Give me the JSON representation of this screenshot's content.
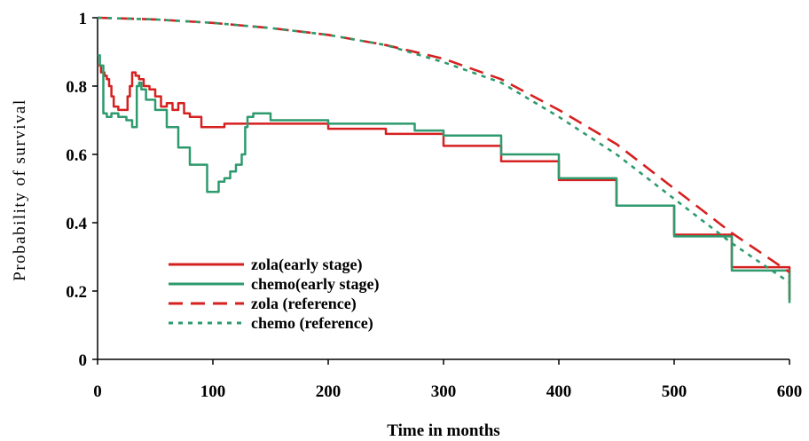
{
  "chart_data": {
    "type": "line",
    "title": "",
    "xlabel": "Time in months",
    "ylabel": "Probability of survival",
    "xlim": [
      0,
      600
    ],
    "ylim": [
      0,
      1
    ],
    "xticks": [
      0,
      100,
      200,
      300,
      400,
      500,
      600
    ],
    "yticks": [
      0,
      0.2,
      0.4,
      0.6,
      0.8,
      1
    ],
    "ytick_labels": [
      "0",
      "0.2",
      "0.4",
      "0.6",
      "0.8",
      "1"
    ],
    "grid": false,
    "legend_position": "lower-left",
    "series": [
      {
        "name": "zola(early stage)",
        "color": "#d62020",
        "style": "solid",
        "x": [
          0,
          3,
          6,
          8,
          10,
          12,
          14,
          18,
          22,
          26,
          28,
          30,
          33,
          36,
          40,
          45,
          50,
          55,
          60,
          65,
          70,
          75,
          80,
          85,
          90,
          95,
          100,
          110,
          120,
          150,
          200,
          250,
          300,
          350,
          400,
          450,
          500,
          550,
          600
        ],
        "y": [
          0.86,
          0.84,
          0.83,
          0.82,
          0.8,
          0.77,
          0.74,
          0.73,
          0.73,
          0.77,
          0.8,
          0.84,
          0.83,
          0.82,
          0.8,
          0.79,
          0.77,
          0.74,
          0.75,
          0.73,
          0.75,
          0.72,
          0.71,
          0.71,
          0.68,
          0.68,
          0.68,
          0.69,
          0.69,
          0.69,
          0.675,
          0.66,
          0.625,
          0.58,
          0.525,
          0.45,
          0.365,
          0.27,
          0.175
        ]
      },
      {
        "name": "chemo(early stage)",
        "color": "#2e9a6e",
        "style": "solid",
        "x": [
          0,
          2,
          5,
          8,
          12,
          18,
          25,
          30,
          34,
          36,
          38,
          42,
          50,
          60,
          70,
          80,
          90,
          95,
          100,
          105,
          110,
          115,
          120,
          125,
          128,
          130,
          135,
          140,
          150,
          200,
          270,
          275,
          300,
          350,
          400,
          450,
          500,
          550,
          600
        ],
        "y": [
          0.89,
          0.86,
          0.72,
          0.71,
          0.72,
          0.71,
          0.7,
          0.68,
          0.8,
          0.81,
          0.79,
          0.76,
          0.73,
          0.68,
          0.62,
          0.57,
          0.57,
          0.49,
          0.49,
          0.52,
          0.53,
          0.55,
          0.57,
          0.6,
          0.68,
          0.71,
          0.72,
          0.72,
          0.7,
          0.69,
          0.69,
          0.67,
          0.655,
          0.6,
          0.53,
          0.45,
          0.36,
          0.26,
          0.165
        ]
      },
      {
        "name": "zola (reference)",
        "color": "#d62020",
        "style": "dashed",
        "x": [
          0,
          50,
          100,
          150,
          200,
          250,
          300,
          350,
          400,
          450,
          500,
          550,
          600
        ],
        "y": [
          1.0,
          0.995,
          0.985,
          0.97,
          0.95,
          0.92,
          0.88,
          0.82,
          0.73,
          0.63,
          0.5,
          0.37,
          0.255
        ]
      },
      {
        "name": "chemo (reference)",
        "color": "#2e9a6e",
        "style": "dotted",
        "x": [
          0,
          50,
          100,
          150,
          200,
          250,
          300,
          350,
          400,
          450,
          500,
          550,
          600
        ],
        "y": [
          1.0,
          0.995,
          0.985,
          0.97,
          0.95,
          0.92,
          0.87,
          0.81,
          0.71,
          0.6,
          0.47,
          0.34,
          0.225
        ]
      }
    ]
  }
}
